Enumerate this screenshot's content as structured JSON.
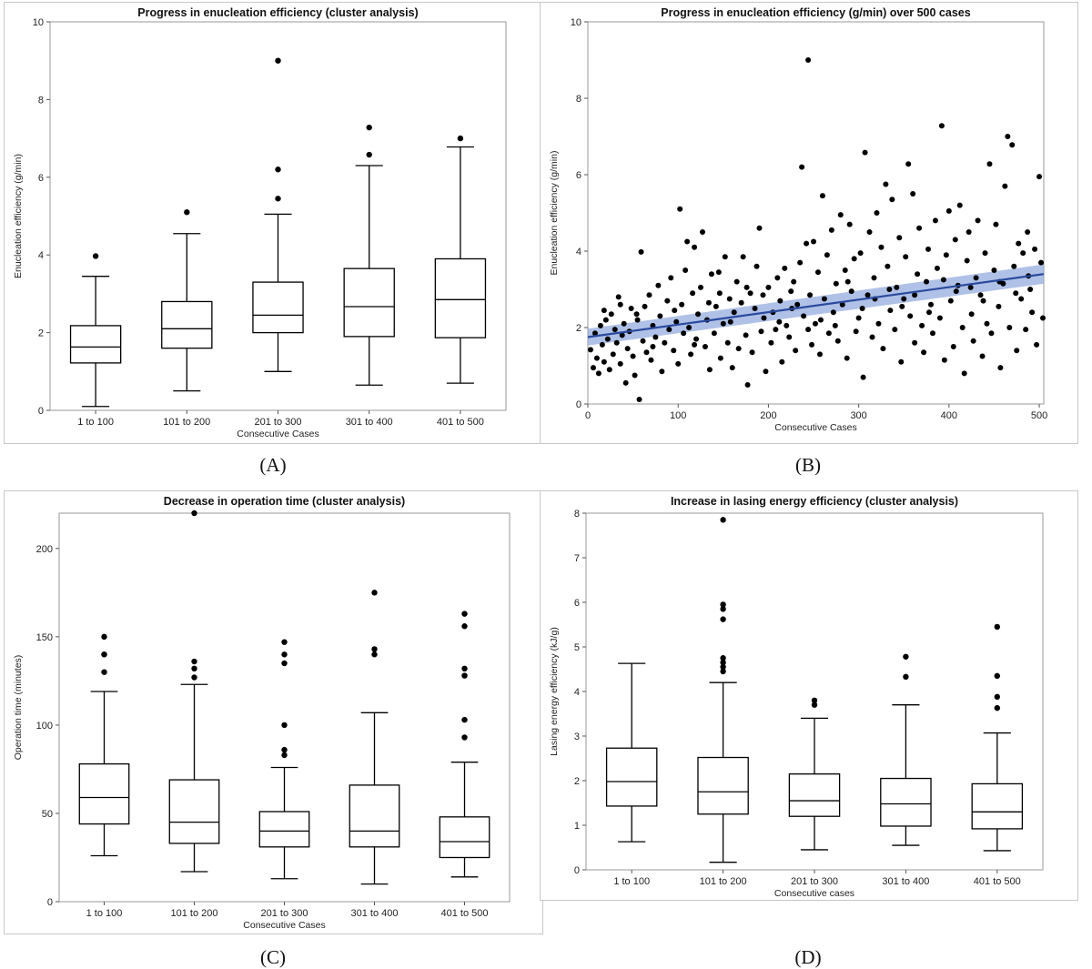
{
  "panels": {
    "a": {
      "label": "(A)"
    },
    "b": {
      "label": "(B)"
    },
    "c": {
      "label": "(C)"
    },
    "d": {
      "label": "(D)"
    }
  },
  "chart_data": [
    {
      "id": "A",
      "type": "box",
      "title": "Progress in enucleation efficiency (cluster analysis)",
      "xlabel": "Consecutive Cases",
      "ylabel": "Enucleation efficiency (g/min)",
      "ylim": [
        0,
        10
      ],
      "yticks": [
        0,
        2,
        4,
        6,
        8,
        10
      ],
      "categories": [
        "1 to 100",
        "101 to 200",
        "201 to 300",
        "301 to 400",
        "401 to 500"
      ],
      "boxes": [
        {
          "min": 0.1,
          "q1": 1.22,
          "median": 1.63,
          "q3": 2.18,
          "max": 3.45,
          "outliers": [
            3.97
          ]
        },
        {
          "min": 0.5,
          "q1": 1.6,
          "median": 2.1,
          "q3": 2.8,
          "max": 4.55,
          "outliers": [
            5.1
          ]
        },
        {
          "min": 1.0,
          "q1": 2.0,
          "median": 2.45,
          "q3": 3.3,
          "max": 5.05,
          "outliers": [
            5.45,
            6.2,
            9.0
          ]
        },
        {
          "min": 0.65,
          "q1": 1.9,
          "median": 2.67,
          "q3": 3.65,
          "max": 6.3,
          "outliers": [
            6.58,
            7.28
          ]
        },
        {
          "min": 0.7,
          "q1": 1.87,
          "median": 2.85,
          "q3": 3.9,
          "max": 6.78,
          "outliers": [
            7.0
          ]
        }
      ]
    },
    {
      "id": "B",
      "type": "scatter",
      "title": "Progress in enucleation efficiency (g/min) over 500 cases",
      "xlabel": "Consecutive Cases",
      "ylabel": "Enucleation efficiency (g/min)",
      "xlim": [
        0,
        505
      ],
      "ylim": [
        0,
        10
      ],
      "xticks": [
        0,
        100,
        200,
        300,
        400,
        500
      ],
      "yticks": [
        0,
        2,
        4,
        6,
        8,
        10
      ],
      "fit": {
        "x": [
          0,
          505
        ],
        "y": [
          1.75,
          3.4
        ],
        "band": 0.22
      },
      "points": [
        [
          3,
          1.42
        ],
        [
          6,
          0.95
        ],
        [
          8,
          1.85
        ],
        [
          10,
          1.2
        ],
        [
          12,
          0.8
        ],
        [
          14,
          2.05
        ],
        [
          16,
          1.55
        ],
        [
          18,
          1.1
        ],
        [
          20,
          2.2
        ],
        [
          22,
          1.7
        ],
        [
          24,
          0.9
        ],
        [
          26,
          2.35
        ],
        [
          28,
          1.3
        ],
        [
          30,
          1.95
        ],
        [
          32,
          1.6
        ],
        [
          34,
          2.8
        ],
        [
          36,
          1.05
        ],
        [
          38,
          1.8
        ],
        [
          40,
          2.1
        ],
        [
          42,
          0.55
        ],
        [
          44,
          1.45
        ],
        [
          46,
          1.9
        ],
        [
          48,
          2.5
        ],
        [
          50,
          1.25
        ],
        [
          52,
          0.75
        ],
        [
          55,
          2.2
        ],
        [
          57,
          0.12
        ],
        [
          59,
          3.98
        ],
        [
          61,
          1.65
        ],
        [
          63,
          2.55
        ],
        [
          65,
          1.35
        ],
        [
          68,
          2.85
        ],
        [
          70,
          1.15
        ],
        [
          72,
          2.05
        ],
        [
          75,
          1.75
        ],
        [
          78,
          3.1
        ],
        [
          80,
          2.3
        ],
        [
          82,
          0.85
        ],
        [
          85,
          1.6
        ],
        [
          88,
          2.7
        ],
        [
          90,
          1.95
        ],
        [
          92,
          3.3
        ],
        [
          95,
          1.4
        ],
        [
          98,
          2.15
        ],
        [
          100,
          1.05
        ],
        [
          102,
          5.1
        ],
        [
          104,
          2.6
        ],
        [
          106,
          1.85
        ],
        [
          108,
          3.5
        ],
        [
          110,
          4.25
        ],
        [
          112,
          2.0
        ],
        [
          114,
          1.3
        ],
        [
          116,
          2.9
        ],
        [
          118,
          4.1
        ],
        [
          120,
          1.7
        ],
        [
          122,
          2.35
        ],
        [
          125,
          3.05
        ],
        [
          127,
          4.5
        ],
        [
          130,
          1.5
        ],
        [
          132,
          2.2
        ],
        [
          135,
          0.9
        ],
        [
          137,
          3.4
        ],
        [
          140,
          1.85
        ],
        [
          142,
          2.55
        ],
        [
          145,
          3.45
        ],
        [
          147,
          1.2
        ],
        [
          150,
          2.1
        ],
        [
          152,
          3.85
        ],
        [
          155,
          1.6
        ],
        [
          157,
          2.75
        ],
        [
          160,
          0.95
        ],
        [
          162,
          2.4
        ],
        [
          165,
          3.2
        ],
        [
          167,
          1.45
        ],
        [
          170,
          2.65
        ],
        [
          172,
          3.85
        ],
        [
          175,
          1.8
        ],
        [
          177,
          0.5
        ],
        [
          180,
          2.9
        ],
        [
          182,
          1.35
        ],
        [
          185,
          2.5
        ],
        [
          187,
          3.6
        ],
        [
          190,
          4.6
        ],
        [
          192,
          1.9
        ],
        [
          195,
          2.25
        ],
        [
          197,
          0.85
        ],
        [
          200,
          3.05
        ],
        [
          203,
          1.6
        ],
        [
          205,
          2.4
        ],
        [
          208,
          1.95
        ],
        [
          210,
          3.3
        ],
        [
          213,
          2.7
        ],
        [
          215,
          1.1
        ],
        [
          218,
          3.55
        ],
        [
          220,
          2.05
        ],
        [
          223,
          1.75
        ],
        [
          225,
          2.95
        ],
        [
          228,
          3.2
        ],
        [
          230,
          1.4
        ],
        [
          232,
          2.6
        ],
        [
          235,
          3.7
        ],
        [
          237,
          6.2
        ],
        [
          239,
          2.3
        ],
        [
          242,
          4.2
        ],
        [
          244,
          9.0
        ],
        [
          246,
          2.85
        ],
        [
          248,
          1.55
        ],
        [
          250,
          4.25
        ],
        [
          252,
          2.1
        ],
        [
          255,
          3.45
        ],
        [
          257,
          1.3
        ],
        [
          260,
          5.45
        ],
        [
          262,
          2.75
        ],
        [
          265,
          3.9
        ],
        [
          267,
          1.85
        ],
        [
          270,
          4.55
        ],
        [
          272,
          2.4
        ],
        [
          275,
          3.15
        ],
        [
          277,
          1.65
        ],
        [
          280,
          4.95
        ],
        [
          282,
          2.6
        ],
        [
          285,
          3.5
        ],
        [
          287,
          1.2
        ],
        [
          290,
          4.7
        ],
        [
          292,
          2.95
        ],
        [
          295,
          3.8
        ],
        [
          297,
          1.9
        ],
        [
          300,
          2.25
        ],
        [
          302,
          3.95
        ],
        [
          305,
          0.7
        ],
        [
          307,
          6.58
        ],
        [
          310,
          2.85
        ],
        [
          312,
          4.5
        ],
        [
          315,
          1.75
        ],
        [
          317,
          3.3
        ],
        [
          320,
          5.0
        ],
        [
          322,
          2.1
        ],
        [
          325,
          4.1
        ],
        [
          327,
          1.45
        ],
        [
          330,
          5.75
        ],
        [
          332,
          3.6
        ],
        [
          335,
          2.45
        ],
        [
          337,
          5.35
        ],
        [
          340,
          1.95
        ],
        [
          342,
          3.05
        ],
        [
          345,
          4.35
        ],
        [
          347,
          1.1
        ],
        [
          350,
          2.75
        ],
        [
          352,
          3.85
        ],
        [
          355,
          6.28
        ],
        [
          357,
          2.3
        ],
        [
          360,
          5.5
        ],
        [
          362,
          1.6
        ],
        [
          365,
          3.4
        ],
        [
          367,
          4.6
        ],
        [
          370,
          2.05
        ],
        [
          372,
          1.35
        ],
        [
          375,
          3.2
        ],
        [
          377,
          4.05
        ],
        [
          380,
          2.6
        ],
        [
          382,
          1.85
        ],
        [
          385,
          4.8
        ],
        [
          387,
          3.55
        ],
        [
          390,
          2.25
        ],
        [
          392,
          7.28
        ],
        [
          395,
          1.15
        ],
        [
          397,
          3.9
        ],
        [
          400,
          5.05
        ],
        [
          402,
          2.7
        ],
        [
          405,
          1.5
        ],
        [
          407,
          4.3
        ],
        [
          410,
          3.1
        ],
        [
          412,
          5.2
        ],
        [
          415,
          2.0
        ],
        [
          417,
          0.8
        ],
        [
          420,
          3.75
        ],
        [
          422,
          4.5
        ],
        [
          425,
          2.35
        ],
        [
          427,
          1.65
        ],
        [
          430,
          3.3
        ],
        [
          432,
          4.8
        ],
        [
          435,
          2.85
        ],
        [
          437,
          1.25
        ],
        [
          440,
          3.95
        ],
        [
          442,
          2.1
        ],
        [
          445,
          6.28
        ],
        [
          447,
          1.85
        ],
        [
          450,
          3.5
        ],
        [
          452,
          4.7
        ],
        [
          455,
          2.55
        ],
        [
          457,
          0.95
        ],
        [
          460,
          3.15
        ],
        [
          462,
          5.7
        ],
        [
          465,
          7.0
        ],
        [
          467,
          2.0
        ],
        [
          470,
          6.78
        ],
        [
          472,
          3.6
        ],
        [
          475,
          1.4
        ],
        [
          477,
          4.2
        ],
        [
          480,
          2.75
        ],
        [
          482,
          3.95
        ],
        [
          485,
          1.95
        ],
        [
          487,
          4.5
        ],
        [
          490,
          3.0
        ],
        [
          492,
          2.4
        ],
        [
          495,
          4.05
        ],
        [
          497,
          1.55
        ],
        [
          500,
          5.95
        ],
        [
          502,
          3.7
        ],
        [
          504,
          2.25
        ],
        [
          18,
          2.45
        ],
        [
          36,
          2.6
        ],
        [
          54,
          2.35
        ],
        [
          72,
          1.5
        ],
        [
          96,
          2.45
        ],
        [
          118,
          1.55
        ],
        [
          134,
          2.65
        ],
        [
          146,
          2.9
        ],
        [
          158,
          2.15
        ],
        [
          176,
          3.05
        ],
        [
          194,
          2.85
        ],
        [
          212,
          2.15
        ],
        [
          226,
          2.5
        ],
        [
          244,
          1.95
        ],
        [
          258,
          2.2
        ],
        [
          274,
          2.05
        ],
        [
          288,
          3.2
        ],
        [
          304,
          2.5
        ],
        [
          318,
          2.75
        ],
        [
          334,
          3.0
        ],
        [
          348,
          2.55
        ],
        [
          362,
          2.85
        ],
        [
          378,
          2.4
        ],
        [
          394,
          3.25
        ],
        [
          408,
          2.95
        ],
        [
          424,
          3.05
        ],
        [
          438,
          2.7
        ],
        [
          456,
          3.2
        ],
        [
          474,
          2.9
        ],
        [
          488,
          3.35
        ]
      ]
    },
    {
      "id": "C",
      "type": "box",
      "title": "Decrease in operation time (cluster analysis)",
      "xlabel": "Consecutive Cases",
      "ylabel": "Operation time (minutes)",
      "ylim": [
        0,
        220
      ],
      "yticks": [
        0,
        50,
        100,
        150,
        200
      ],
      "categories": [
        "1 to 100",
        "101 to 200",
        "201 to 300",
        "301 to 400",
        "401 to 500"
      ],
      "boxes": [
        {
          "min": 26,
          "q1": 44,
          "median": 59,
          "q3": 78,
          "max": 119,
          "outliers": [
            130,
            140,
            140,
            150
          ]
        },
        {
          "min": 17,
          "q1": 33,
          "median": 45,
          "q3": 69,
          "max": 123,
          "outliers": [
            127,
            132,
            136,
            220
          ]
        },
        {
          "min": 13,
          "q1": 31,
          "median": 40,
          "q3": 51,
          "max": 76,
          "outliers": [
            83,
            86,
            100,
            135,
            140,
            147
          ]
        },
        {
          "min": 10,
          "q1": 31,
          "median": 40,
          "q3": 66,
          "max": 107,
          "outliers": [
            140,
            143,
            175
          ]
        },
        {
          "min": 14,
          "q1": 25,
          "median": 34,
          "q3": 48,
          "max": 79,
          "outliers": [
            93,
            103,
            128,
            132,
            156,
            163
          ]
        }
      ]
    },
    {
      "id": "D",
      "type": "box",
      "title": "Increase in lasing energy efficiency (cluster analysis)",
      "xlabel": "Consecutive cases",
      "ylabel": "Lasing energy efficiency (kJ/g)",
      "ylim": [
        0,
        8
      ],
      "yticks": [
        0,
        1,
        2,
        3,
        4,
        5,
        6,
        7,
        8
      ],
      "categories": [
        "1 to 100",
        "101 to 200",
        "201 to 300",
        "301 to 400",
        "401 to 500"
      ],
      "boxes": [
        {
          "min": 0.63,
          "q1": 1.43,
          "median": 1.98,
          "q3": 2.73,
          "max": 4.63,
          "outliers": []
        },
        {
          "min": 0.17,
          "q1": 1.25,
          "median": 1.75,
          "q3": 2.52,
          "max": 4.2,
          "outliers": [
            4.45,
            4.55,
            4.65,
            4.75,
            5.62,
            5.85,
            5.95,
            7.85
          ]
        },
        {
          "min": 0.45,
          "q1": 1.2,
          "median": 1.55,
          "q3": 2.15,
          "max": 3.4,
          "outliers": [
            3.7,
            3.8
          ]
        },
        {
          "min": 0.55,
          "q1": 0.98,
          "median": 1.48,
          "q3": 2.05,
          "max": 3.7,
          "outliers": [
            4.33,
            4.78
          ]
        },
        {
          "min": 0.43,
          "q1": 0.92,
          "median": 1.3,
          "q3": 1.93,
          "max": 3.07,
          "outliers": [
            3.63,
            3.88,
            4.35,
            5.45
          ]
        }
      ]
    }
  ]
}
